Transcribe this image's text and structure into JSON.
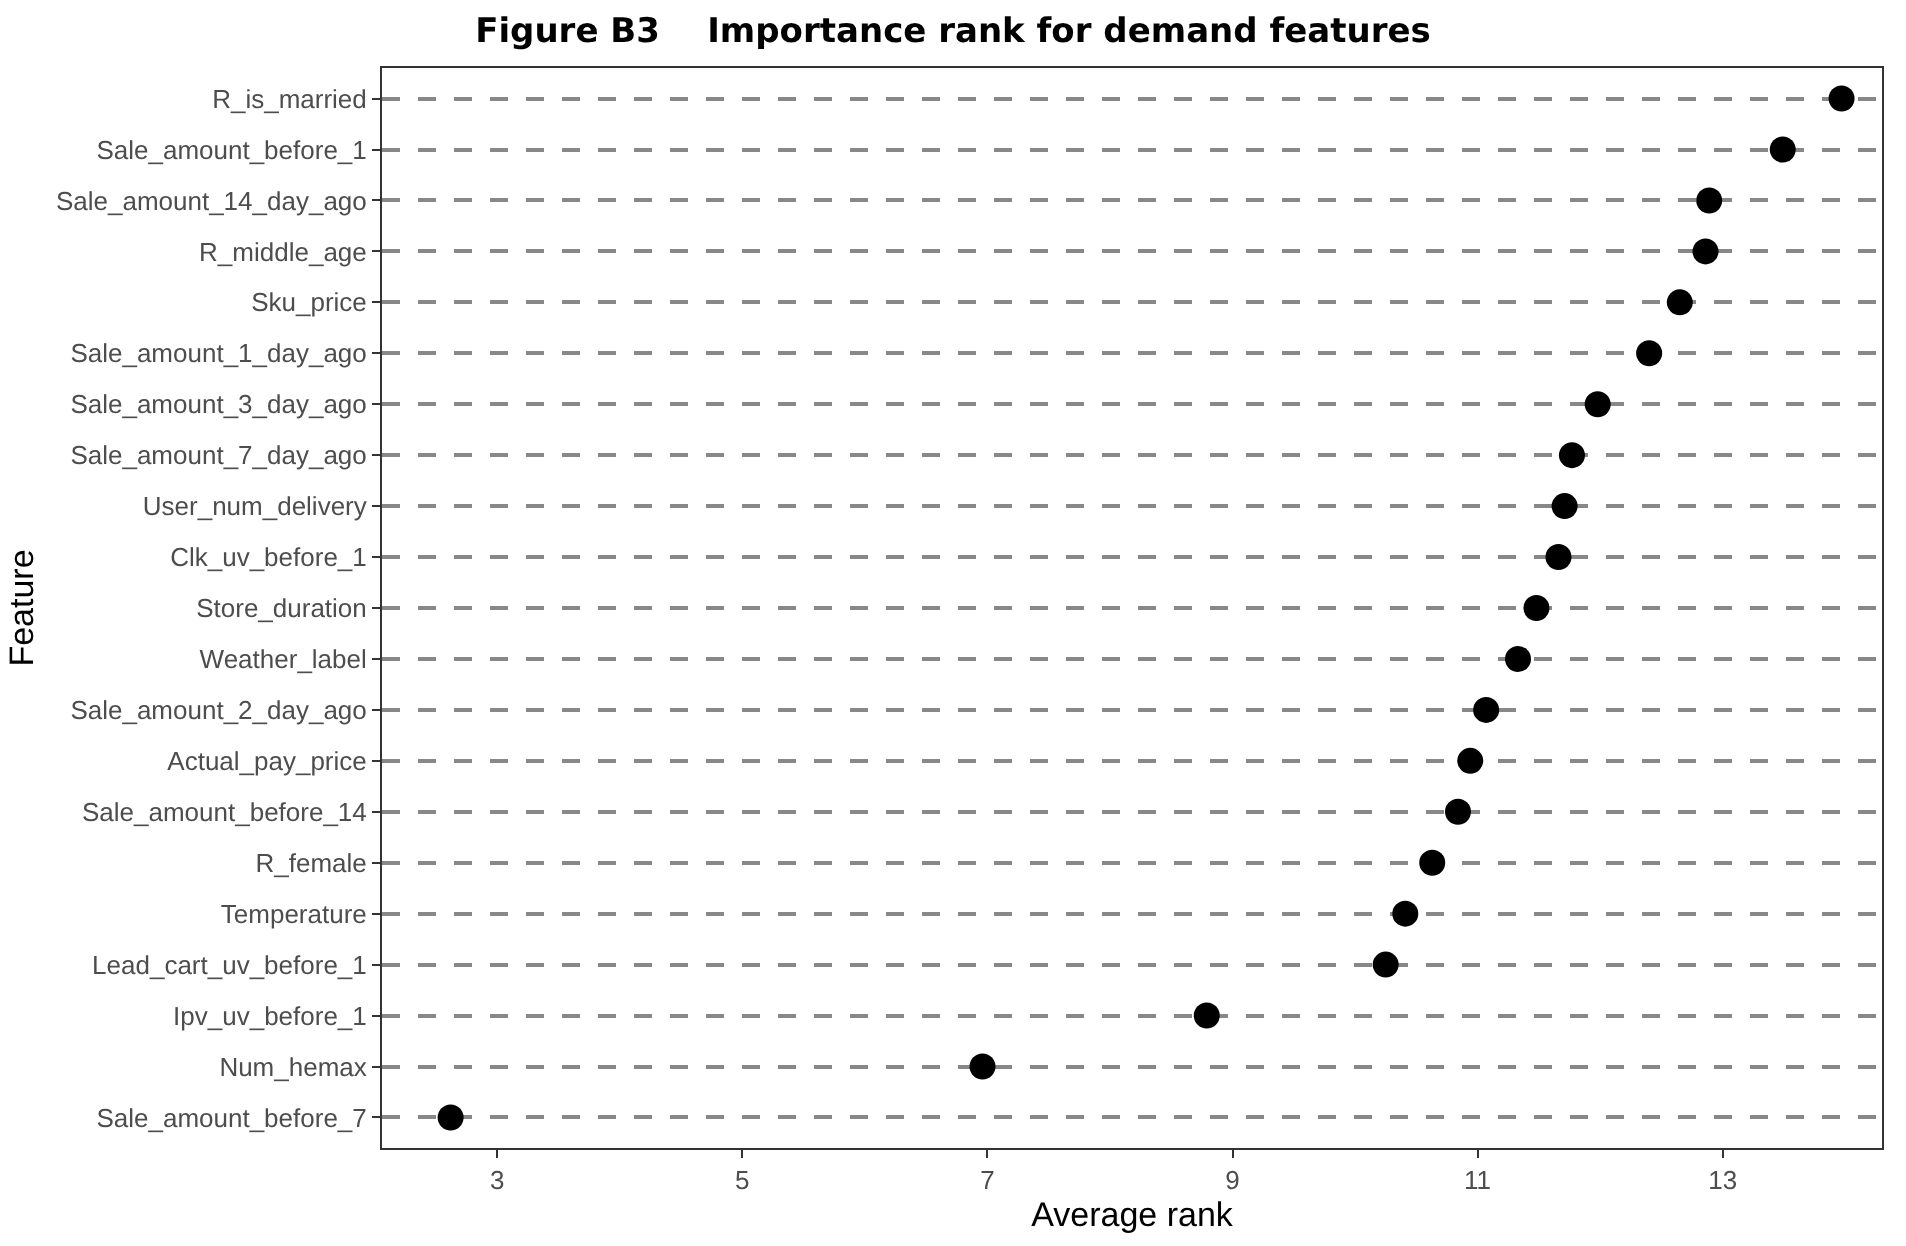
{
  "chart_data": {
    "type": "scatter",
    "orientation": "horizontal",
    "title": "Figure B3    Importance rank for demand features",
    "xlabel": "Average rank",
    "ylabel": "Feature",
    "categories": [
      "R_is_married",
      "Sale_amount_before_1",
      "Sale_amount_14_day_ago",
      "R_middle_age",
      "Sku_price",
      "Sale_amount_1_day_ago",
      "Sale_amount_3_day_ago",
      "Sale_amount_7_day_ago",
      "User_num_delivery",
      "Clk_uv_before_1",
      "Store_duration",
      "Weather_label",
      "Sale_amount_2_day_ago",
      "Actual_pay_price",
      "Sale_amount_before_14",
      "R_female",
      "Temperature",
      "Lead_cart_uv_before_1",
      "Ipv_uv_before_1",
      "Num_hemax",
      "Sale_amount_before_7"
    ],
    "values": [
      13.97,
      13.49,
      12.89,
      12.86,
      12.65,
      12.4,
      11.98,
      11.77,
      11.71,
      11.66,
      11.48,
      11.33,
      11.07,
      10.94,
      10.84,
      10.63,
      10.41,
      10.25,
      8.79,
      6.96,
      2.62
    ],
    "color": "#000000",
    "marker": "circle",
    "grid": "y",
    "xlim": [
      2.06,
      14.3
    ],
    "xticks": [
      3,
      5,
      7,
      9,
      11,
      13
    ]
  }
}
